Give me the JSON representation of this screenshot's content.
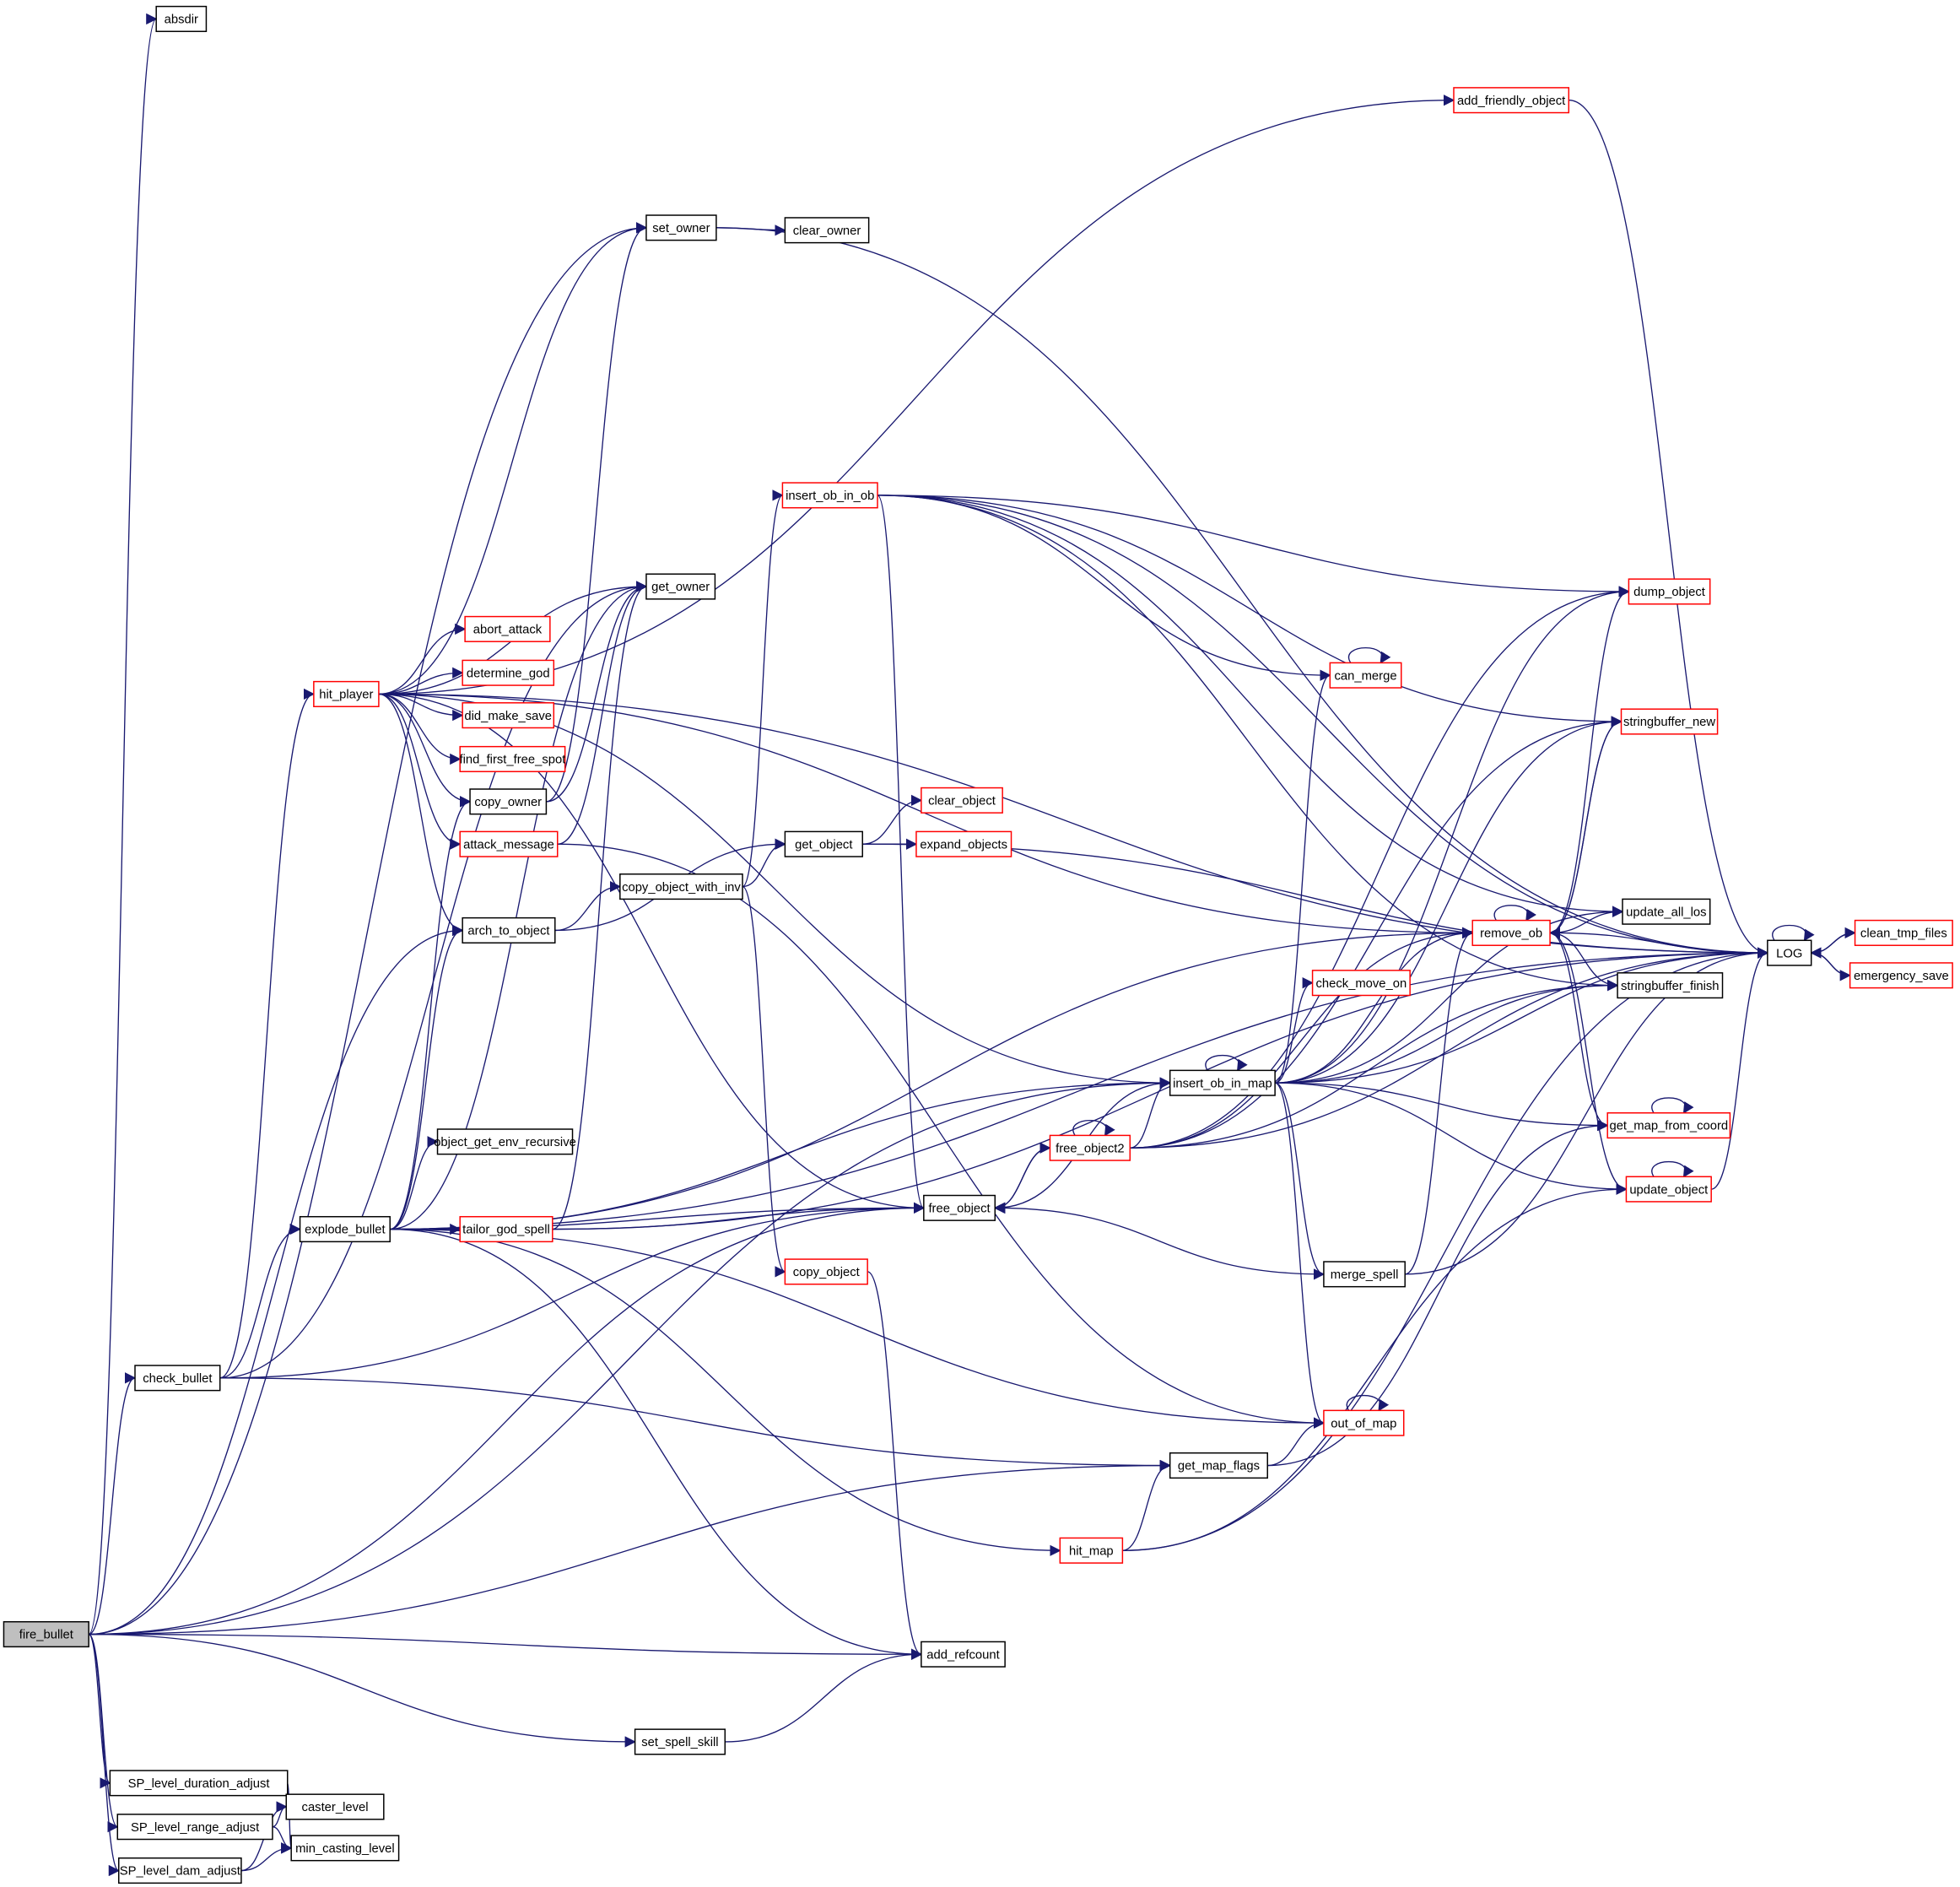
{
  "colors": {
    "edge": "#191970",
    "normal_border": "#000000",
    "truncated_border": "#ff0000",
    "root_fill": "#bfbfbf",
    "node_fill": "#ffffff"
  },
  "root": "fire_bullet",
  "nodes": [
    {
      "id": "absdir",
      "label": "absdir",
      "truncated": false
    },
    {
      "id": "add_friendly_object",
      "label": "add_friendly_object",
      "truncated": true
    },
    {
      "id": "set_owner",
      "label": "set_owner",
      "truncated": false
    },
    {
      "id": "clear_owner",
      "label": "clear_owner",
      "truncated": false
    },
    {
      "id": "insert_ob_in_ob",
      "label": "insert_ob_in_ob",
      "truncated": true
    },
    {
      "id": "get_owner",
      "label": "get_owner",
      "truncated": false
    },
    {
      "id": "dump_object",
      "label": "dump_object",
      "truncated": true
    },
    {
      "id": "abort_attack",
      "label": "abort_attack",
      "truncated": true
    },
    {
      "id": "hit_player",
      "label": "hit_player",
      "truncated": true
    },
    {
      "id": "determine_god",
      "label": "determine_god",
      "truncated": true
    },
    {
      "id": "can_merge",
      "label": "can_merge",
      "truncated": true
    },
    {
      "id": "did_make_save",
      "label": "did_make_save",
      "truncated": true
    },
    {
      "id": "stringbuffer_new",
      "label": "stringbuffer_new",
      "truncated": true
    },
    {
      "id": "find_first_free_spot",
      "label": "find_first_free_spot",
      "truncated": true
    },
    {
      "id": "copy_owner",
      "label": "copy_owner",
      "truncated": false
    },
    {
      "id": "clear_object",
      "label": "clear_object",
      "truncated": true
    },
    {
      "id": "attack_message",
      "label": "attack_message",
      "truncated": true
    },
    {
      "id": "get_object",
      "label": "get_object",
      "truncated": false
    },
    {
      "id": "expand_objects",
      "label": "expand_objects",
      "truncated": true
    },
    {
      "id": "copy_object_with_inv",
      "label": "copy_object_with_inv",
      "truncated": false
    },
    {
      "id": "arch_to_object",
      "label": "arch_to_object",
      "truncated": false
    },
    {
      "id": "remove_ob",
      "label": "remove_ob",
      "truncated": true
    },
    {
      "id": "update_all_los",
      "label": "update_all_los",
      "truncated": false
    },
    {
      "id": "LOG",
      "label": "LOG",
      "truncated": false
    },
    {
      "id": "clean_tmp_files",
      "label": "clean_tmp_files",
      "truncated": true
    },
    {
      "id": "emergency_save",
      "label": "emergency_save",
      "truncated": true
    },
    {
      "id": "check_move_on",
      "label": "check_move_on",
      "truncated": true
    },
    {
      "id": "stringbuffer_finish",
      "label": "stringbuffer_finish",
      "truncated": false
    },
    {
      "id": "insert_ob_in_map",
      "label": "insert_ob_in_map",
      "truncated": false
    },
    {
      "id": "free_object2",
      "label": "free_object2",
      "truncated": true
    },
    {
      "id": "get_map_from_coord",
      "label": "get_map_from_coord",
      "truncated": true
    },
    {
      "id": "object_get_env_recursive",
      "label": "object_get_env_recursive",
      "truncated": false
    },
    {
      "id": "update_object",
      "label": "update_object",
      "truncated": true
    },
    {
      "id": "explode_bullet",
      "label": "explode_bullet",
      "truncated": false
    },
    {
      "id": "tailor_god_spell",
      "label": "tailor_god_spell",
      "truncated": true
    },
    {
      "id": "free_object",
      "label": "free_object",
      "truncated": false
    },
    {
      "id": "copy_object",
      "label": "copy_object",
      "truncated": true
    },
    {
      "id": "merge_spell",
      "label": "merge_spell",
      "truncated": false
    },
    {
      "id": "check_bullet",
      "label": "check_bullet",
      "truncated": false
    },
    {
      "id": "out_of_map",
      "label": "out_of_map",
      "truncated": true
    },
    {
      "id": "get_map_flags",
      "label": "get_map_flags",
      "truncated": false
    },
    {
      "id": "hit_map",
      "label": "hit_map",
      "truncated": true
    },
    {
      "id": "fire_bullet",
      "label": "fire_bullet",
      "truncated": false
    },
    {
      "id": "add_refcount",
      "label": "add_refcount",
      "truncated": false
    },
    {
      "id": "set_spell_skill",
      "label": "set_spell_skill",
      "truncated": false
    },
    {
      "id": "SP_level_duration_adjust",
      "label": "SP_level_duration_adjust",
      "truncated": false
    },
    {
      "id": "caster_level",
      "label": "caster_level",
      "truncated": false
    },
    {
      "id": "SP_level_range_adjust",
      "label": "SP_level_range_adjust",
      "truncated": false
    },
    {
      "id": "min_casting_level",
      "label": "min_casting_level",
      "truncated": false
    },
    {
      "id": "SP_level_dam_adjust",
      "label": "SP_level_dam_adjust",
      "truncated": false
    }
  ],
  "edges": [
    [
      "fire_bullet",
      "absdir"
    ],
    [
      "fire_bullet",
      "set_owner"
    ],
    [
      "fire_bullet",
      "arch_to_object"
    ],
    [
      "fire_bullet",
      "insert_ob_in_map"
    ],
    [
      "fire_bullet",
      "check_bullet"
    ],
    [
      "fire_bullet",
      "free_object"
    ],
    [
      "fire_bullet",
      "add_refcount"
    ],
    [
      "fire_bullet",
      "get_map_flags"
    ],
    [
      "fire_bullet",
      "set_spell_skill"
    ],
    [
      "fire_bullet",
      "SP_level_duration_adjust"
    ],
    [
      "fire_bullet",
      "SP_level_range_adjust"
    ],
    [
      "fire_bullet",
      "SP_level_dam_adjust"
    ],
    [
      "hit_player",
      "add_friendly_object"
    ],
    [
      "hit_player",
      "LOG"
    ],
    [
      "hit_player",
      "set_owner"
    ],
    [
      "hit_player",
      "get_owner"
    ],
    [
      "hit_player",
      "abort_attack"
    ],
    [
      "hit_player",
      "determine_god"
    ],
    [
      "hit_player",
      "did_make_save"
    ],
    [
      "hit_player",
      "find_first_free_spot"
    ],
    [
      "hit_player",
      "attack_message"
    ],
    [
      "hit_player",
      "copy_owner"
    ],
    [
      "hit_player",
      "arch_to_object"
    ],
    [
      "hit_player",
      "remove_ob"
    ],
    [
      "hit_player",
      "insert_ob_in_map"
    ],
    [
      "hit_player",
      "free_object"
    ],
    [
      "set_owner",
      "clear_owner"
    ],
    [
      "set_owner",
      "LOG"
    ],
    [
      "add_friendly_object",
      "LOG"
    ],
    [
      "copy_owner",
      "set_owner"
    ],
    [
      "copy_owner",
      "get_owner"
    ],
    [
      "attack_message",
      "get_owner"
    ],
    [
      "attack_message",
      "out_of_map"
    ],
    [
      "arch_to_object",
      "get_object"
    ],
    [
      "arch_to_object",
      "copy_object_with_inv"
    ],
    [
      "copy_object_with_inv",
      "get_object"
    ],
    [
      "copy_object_with_inv",
      "insert_ob_in_ob"
    ],
    [
      "copy_object_with_inv",
      "copy_object"
    ],
    [
      "get_object",
      "clear_object"
    ],
    [
      "get_object",
      "expand_objects"
    ],
    [
      "get_object",
      "LOG"
    ],
    [
      "copy_object",
      "add_refcount"
    ],
    [
      "insert_ob_in_ob",
      "LOG"
    ],
    [
      "insert_ob_in_ob",
      "dump_object"
    ],
    [
      "insert_ob_in_ob",
      "can_merge"
    ],
    [
      "insert_ob_in_ob",
      "stringbuffer_new"
    ],
    [
      "insert_ob_in_ob",
      "update_all_los"
    ],
    [
      "insert_ob_in_ob",
      "stringbuffer_finish"
    ],
    [
      "insert_ob_in_ob",
      "free_object"
    ],
    [
      "check_bullet",
      "hit_player"
    ],
    [
      "check_bullet",
      "explode_bullet"
    ],
    [
      "check_bullet",
      "free_object"
    ],
    [
      "check_bullet",
      "get_map_flags"
    ],
    [
      "check_bullet",
      "get_owner"
    ],
    [
      "explode_bullet",
      "arch_to_object"
    ],
    [
      "explode_bullet",
      "copy_owner"
    ],
    [
      "explode_bullet",
      "object_get_env_recursive"
    ],
    [
      "explode_bullet",
      "tailor_god_spell"
    ],
    [
      "explode_bullet",
      "free_object"
    ],
    [
      "explode_bullet",
      "insert_ob_in_map"
    ],
    [
      "explode_bullet",
      "remove_ob"
    ],
    [
      "explode_bullet",
      "out_of_map"
    ],
    [
      "explode_bullet",
      "hit_map"
    ],
    [
      "explode_bullet",
      "add_refcount"
    ],
    [
      "explode_bullet",
      "LOG"
    ],
    [
      "explode_bullet",
      "get_owner"
    ],
    [
      "tailor_god_spell",
      "get_owner"
    ],
    [
      "tailor_god_spell",
      "free_object"
    ],
    [
      "tailor_god_spell",
      "LOG"
    ],
    [
      "remove_ob",
      "remove_ob"
    ],
    [
      "remove_ob",
      "LOG"
    ],
    [
      "remove_ob",
      "update_all_los"
    ],
    [
      "remove_ob",
      "stringbuffer_finish"
    ],
    [
      "remove_ob",
      "stringbuffer_new"
    ],
    [
      "remove_ob",
      "dump_object"
    ],
    [
      "remove_ob",
      "get_map_from_coord"
    ],
    [
      "remove_ob",
      "update_object"
    ],
    [
      "insert_ob_in_map",
      "insert_ob_in_map"
    ],
    [
      "insert_ob_in_map",
      "check_move_on"
    ],
    [
      "insert_ob_in_map",
      "remove_ob"
    ],
    [
      "insert_ob_in_map",
      "can_merge"
    ],
    [
      "insert_ob_in_map",
      "dump_object"
    ],
    [
      "insert_ob_in_map",
      "stringbuffer_new"
    ],
    [
      "insert_ob_in_map",
      "update_all_los"
    ],
    [
      "insert_ob_in_map",
      "stringbuffer_finish"
    ],
    [
      "insert_ob_in_map",
      "get_map_from_coord"
    ],
    [
      "insert_ob_in_map",
      "update_object"
    ],
    [
      "insert_ob_in_map",
      "merge_spell"
    ],
    [
      "insert_ob_in_map",
      "out_of_map"
    ],
    [
      "insert_ob_in_map",
      "free_object"
    ],
    [
      "insert_ob_in_map",
      "LOG"
    ],
    [
      "free_object2",
      "free_object2"
    ],
    [
      "free_object2",
      "insert_ob_in_map"
    ],
    [
      "free_object2",
      "free_object"
    ],
    [
      "free_object2",
      "remove_ob"
    ],
    [
      "free_object2",
      "dump_object"
    ],
    [
      "free_object2",
      "stringbuffer_new"
    ],
    [
      "free_object2",
      "stringbuffer_finish"
    ],
    [
      "free_object2",
      "LOG"
    ],
    [
      "free_object",
      "free_object2"
    ],
    [
      "merge_spell",
      "remove_ob"
    ],
    [
      "merge_spell",
      "free_object"
    ],
    [
      "merge_spell",
      "LOG"
    ],
    [
      "get_map_flags",
      "out_of_map"
    ],
    [
      "get_map_flags",
      "get_map_from_coord"
    ],
    [
      "hit_map",
      "get_map_flags"
    ],
    [
      "hit_map",
      "update_object"
    ],
    [
      "hit_map",
      "LOG"
    ],
    [
      "update_object",
      "update_object"
    ],
    [
      "update_object",
      "LOG"
    ],
    [
      "get_map_from_coord",
      "get_map_from_coord"
    ],
    [
      "out_of_map",
      "out_of_map"
    ],
    [
      "can_merge",
      "can_merge"
    ],
    [
      "stringbuffer_new",
      "remove_ob"
    ],
    [
      "LOG",
      "LOG"
    ],
    [
      "LOG",
      "clean_tmp_files"
    ],
    [
      "LOG",
      "emergency_save"
    ],
    [
      "clean_tmp_files",
      "LOG"
    ],
    [
      "emergency_save",
      "LOG"
    ],
    [
      "set_spell_skill",
      "add_refcount"
    ],
    [
      "SP_level_duration_adjust",
      "caster_level"
    ],
    [
      "SP_level_duration_adjust",
      "min_casting_level"
    ],
    [
      "SP_level_range_adjust",
      "caster_level"
    ],
    [
      "SP_level_range_adjust",
      "min_casting_level"
    ],
    [
      "SP_level_dam_adjust",
      "caster_level"
    ],
    [
      "SP_level_dam_adjust",
      "min_casting_level"
    ]
  ]
}
